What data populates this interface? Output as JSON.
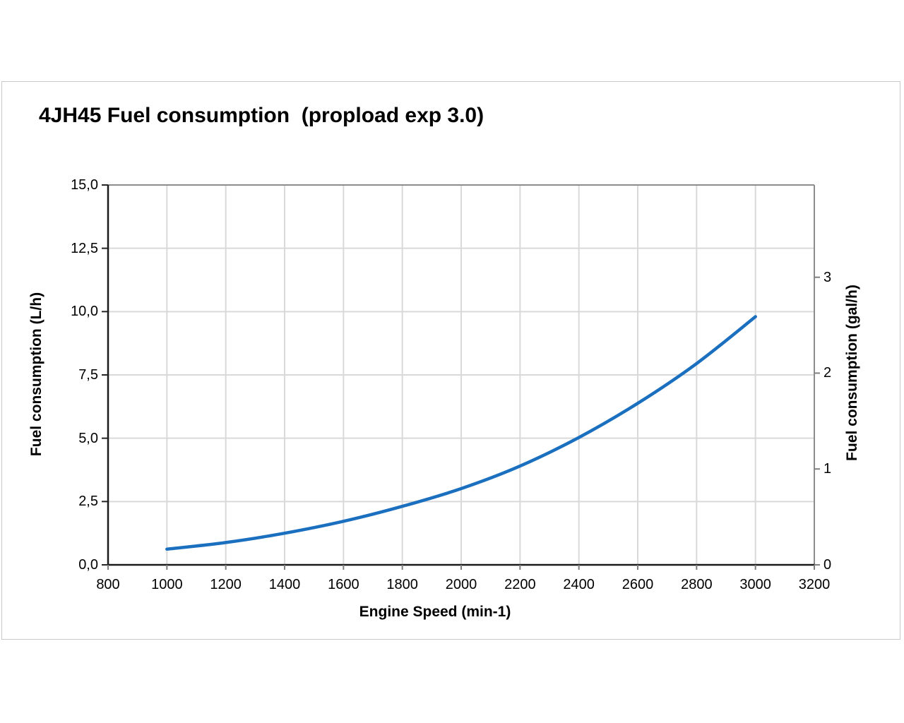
{
  "chart_data": {
    "type": "line",
    "title": "4JH45 Fuel consumption  (propload exp 3.0)",
    "xlabel": "Engine Speed (min-1)",
    "ylabel_left": "Fuel consumption (L/h)",
    "ylabel_right": "Fuel consumption (gal/h)",
    "x_range": [
      800,
      3200
    ],
    "y_left_range": [
      0,
      15
    ],
    "liters_per_gallon": 3.78541,
    "grid": true,
    "legend": "none",
    "x_ticks": [
      {
        "value": 800,
        "label": "800"
      },
      {
        "value": 1000,
        "label": "1000"
      },
      {
        "value": 1200,
        "label": "1200"
      },
      {
        "value": 1400,
        "label": "1400"
      },
      {
        "value": 1600,
        "label": "1600"
      },
      {
        "value": 1800,
        "label": "1800"
      },
      {
        "value": 2000,
        "label": "2000"
      },
      {
        "value": 2200,
        "label": "2200"
      },
      {
        "value": 2400,
        "label": "2400"
      },
      {
        "value": 2600,
        "label": "2600"
      },
      {
        "value": 2800,
        "label": "2800"
      },
      {
        "value": 3000,
        "label": "3000"
      },
      {
        "value": 3200,
        "label": "3200"
      }
    ],
    "y_left_ticks": [
      {
        "value": 0,
        "label": "0,0"
      },
      {
        "value": 2.5,
        "label": "2,5"
      },
      {
        "value": 5,
        "label": "5,0"
      },
      {
        "value": 7.5,
        "label": "7,5"
      },
      {
        "value": 10,
        "label": "10,0"
      },
      {
        "value": 12.5,
        "label": "12,5"
      },
      {
        "value": 15,
        "label": "15,0"
      }
    ],
    "y_right_ticks": [
      {
        "value_gal": 0,
        "label": "0"
      },
      {
        "value_gal": 1,
        "label": "1"
      },
      {
        "value_gal": 2,
        "label": "2"
      },
      {
        "value_gal": 3,
        "label": "3"
      }
    ],
    "series": [
      {
        "name": "Fuel consumption",
        "color": "#1B6FBF",
        "x": [
          1000,
          1200,
          1400,
          1600,
          1800,
          2000,
          2200,
          2400,
          2600,
          2800,
          3000
        ],
        "y_lph": [
          0.62,
          0.88,
          1.25,
          1.72,
          2.31,
          3.01,
          3.9,
          5.03,
          6.38,
          7.95,
          9.8
        ]
      }
    ],
    "colors": {
      "gridline": "#d9d9d9",
      "axis_dark": "#1a1a1a",
      "axis_gray": "#8c8c8c",
      "tick_dark": "#262626",
      "tick_gray": "#7f7f7f",
      "frame_border": "#c9c9c9"
    }
  }
}
